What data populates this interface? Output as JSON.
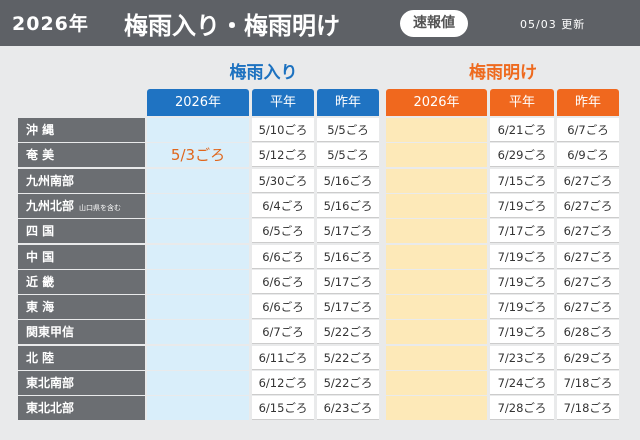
{
  "header": {
    "year": "2026年",
    "title": "梅雨入り・梅雨明け",
    "badge": "速報値",
    "updated": "05/03 更新"
  },
  "table": {
    "groups": [
      "梅雨入り",
      "梅雨明け"
    ],
    "columns": [
      "2026年",
      "平年",
      "昨年",
      "2026年",
      "平年",
      "昨年"
    ],
    "rows": [
      {
        "region": "沖 縄",
        "values": [
          null,
          "5/10ごろ",
          "5/5ごろ",
          null,
          "6/21ごろ",
          "6/7ごろ"
        ]
      },
      {
        "region": "奄 美",
        "values": [
          "5/3ごろ",
          "5/12ごろ",
          "5/5ごろ",
          null,
          "6/29ごろ",
          "6/9ごろ"
        ]
      },
      {
        "region": "九州南部",
        "values": [
          null,
          "5/30ごろ",
          "5/16ごろ",
          null,
          "7/15ごろ",
          "6/27ごろ"
        ]
      },
      {
        "region": "九州北部",
        "note": "山口県を含む",
        "values": [
          null,
          "6/4ごろ",
          "5/16ごろ",
          null,
          "7/19ごろ",
          "6/27ごろ"
        ]
      },
      {
        "region": "四 国",
        "values": [
          null,
          "6/5ごろ",
          "5/17ごろ",
          null,
          "7/17ごろ",
          "6/27ごろ"
        ]
      },
      {
        "region": "中 国",
        "values": [
          null,
          "6/6ごろ",
          "5/16ごろ",
          null,
          "7/19ごろ",
          "6/27ごろ"
        ]
      },
      {
        "region": "近 畿",
        "values": [
          null,
          "6/6ごろ",
          "5/17ごろ",
          null,
          "7/19ごろ",
          "6/27ごろ"
        ]
      },
      {
        "region": "東 海",
        "values": [
          null,
          "6/6ごろ",
          "5/17ごろ",
          null,
          "7/19ごろ",
          "6/27ごろ"
        ]
      },
      {
        "region": "関東甲信",
        "values": [
          null,
          "6/7ごろ",
          "5/22ごろ",
          null,
          "7/19ごろ",
          "6/28ごろ"
        ]
      },
      {
        "region": "北 陸",
        "values": [
          null,
          "6/11ごろ",
          "5/22ごろ",
          null,
          "7/23ごろ",
          "6/29ごろ"
        ]
      },
      {
        "region": "東北南部",
        "values": [
          null,
          "6/12ごろ",
          "5/22ごろ",
          null,
          "7/24ごろ",
          "7/18ごろ"
        ]
      },
      {
        "region": "東北北部",
        "values": [
          null,
          "6/15ごろ",
          "6/23ごろ",
          null,
          "7/28ごろ",
          "7/18ごろ"
        ]
      }
    ]
  }
}
